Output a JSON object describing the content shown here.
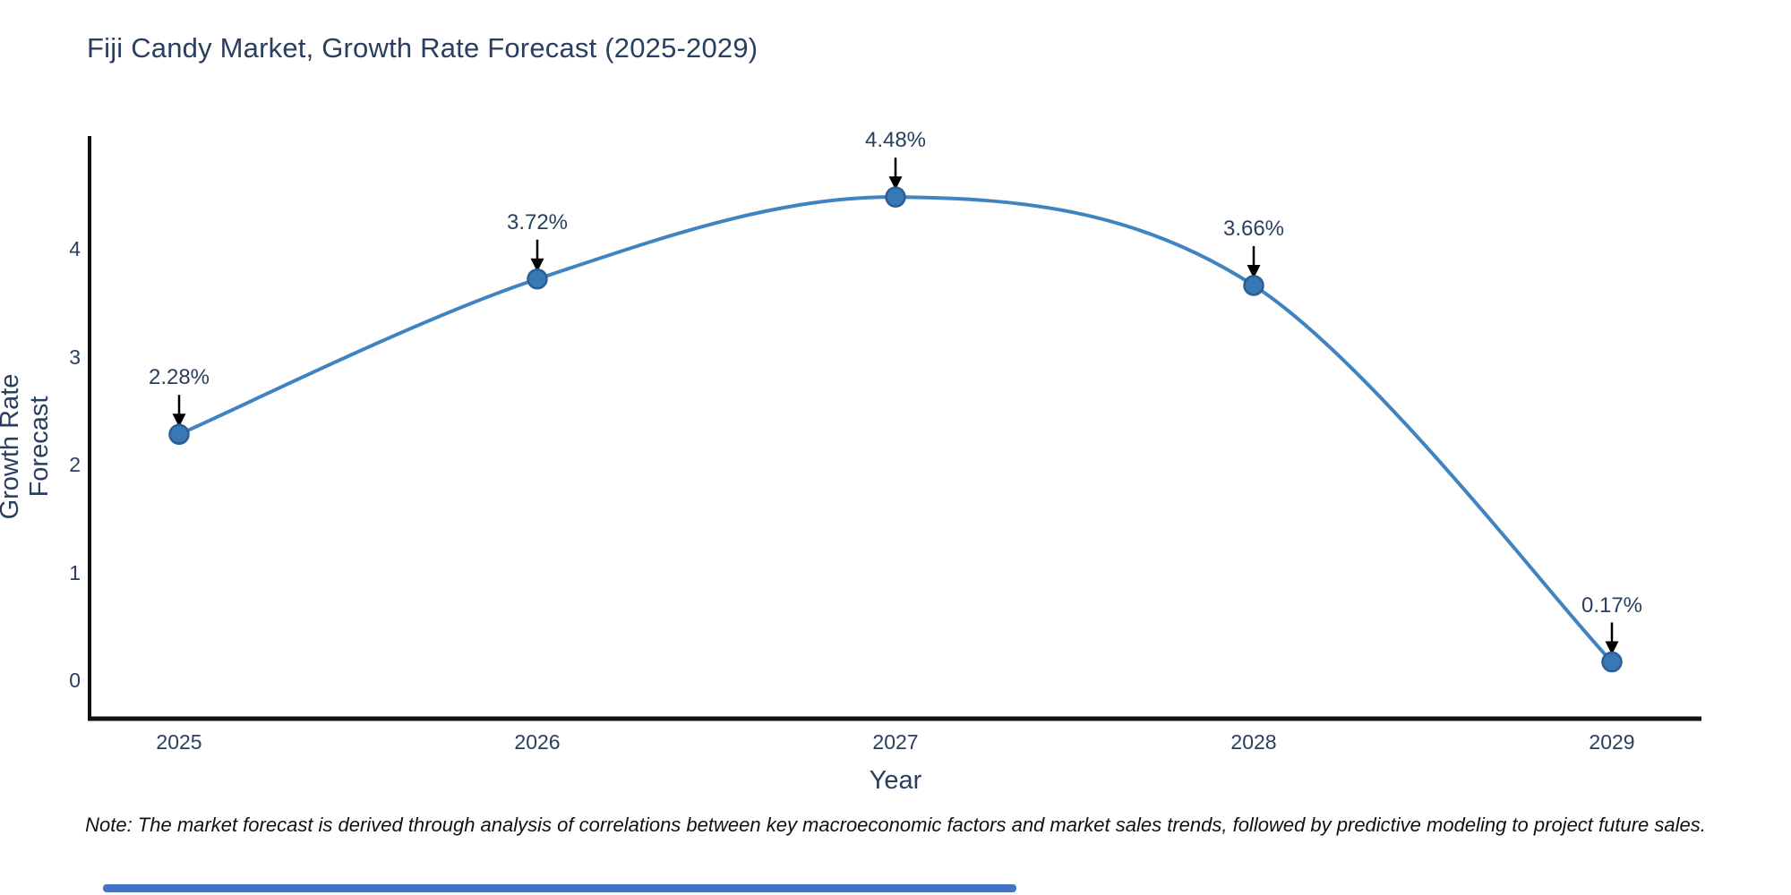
{
  "title": "Fiji Candy Market, Growth Rate Forecast (2025-2029)",
  "note": "Note: The market forecast is derived through analysis of correlations between key macroeconomic factors and market sales trends, followed by predictive modeling to project future sales.",
  "chart_data": {
    "type": "line",
    "title": "Fiji Candy Market, Growth Rate Forecast (2025-2029)",
    "xlabel": "Year",
    "ylabel": "Growth Rate Forecast",
    "x": [
      2025,
      2026,
      2027,
      2028,
      2029
    ],
    "values": [
      2.28,
      3.72,
      4.48,
      3.66,
      0.17
    ],
    "point_labels": [
      "2.28%",
      "3.72%",
      "4.48%",
      "3.66%",
      "0.17%"
    ],
    "yticks": [
      0,
      1,
      2,
      3,
      4
    ],
    "ylim": [
      -0.35,
      5.05
    ],
    "xlim": [
      2024.75,
      2029.25
    ],
    "line_shape": "spline",
    "grid": false,
    "legend": "none",
    "colors": {
      "line": "#4083c1",
      "marker_fill": "#3878b4",
      "marker_edge": "#2b5f94",
      "axis": "#111111",
      "title_text": "#2a3f5f",
      "tick_text": "#2a3f5f",
      "annotation_text": "#2a3f5f",
      "annotation_arrow": "#000000",
      "footer_bar": "#4472c4"
    }
  }
}
